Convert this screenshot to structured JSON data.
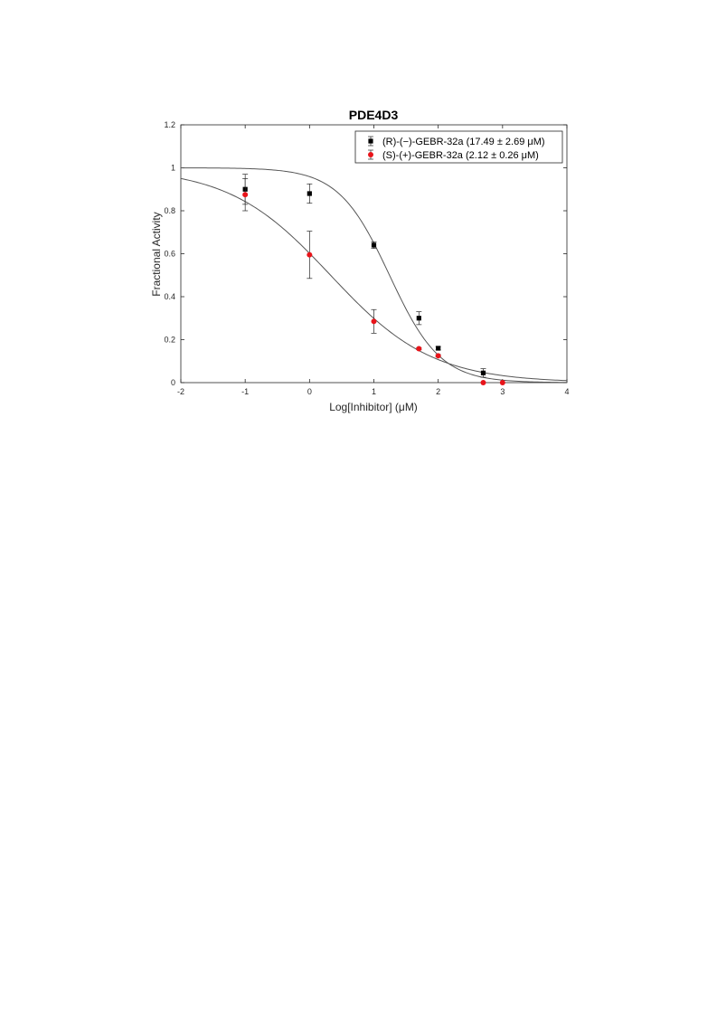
{
  "chart_data": {
    "type": "scatter",
    "title": "PDE4D3",
    "xlabel": "Log[Inhibitor] (μM)",
    "ylabel": "Fractional Activity",
    "xlim": [
      -2,
      4
    ],
    "ylim": [
      0,
      1.2
    ],
    "xticks": [
      "-2",
      "-1",
      "0",
      "1",
      "2",
      "3",
      "4"
    ],
    "yticks": [
      "0",
      "0.2",
      "0.4",
      "0.6",
      "0.8",
      "1",
      "1.2"
    ],
    "grid": false,
    "legend_position": "top-right",
    "series": [
      {
        "name": "(R)-(−)-GEBR-32a (17.49 ± 2.69 μM)",
        "color": "#000000",
        "marker": "square",
        "points": [
          {
            "x": -1,
            "y": 0.9,
            "err": 0.07
          },
          {
            "x": 0,
            "y": 0.88,
            "err": 0.045
          },
          {
            "x": 1,
            "y": 0.64,
            "err": 0.015
          },
          {
            "x": 1.7,
            "y": 0.3,
            "err": 0.03
          },
          {
            "x": 2,
            "y": 0.16,
            "err": 0.008
          },
          {
            "x": 2.7,
            "y": 0.045,
            "err": 0.02
          }
        ],
        "fit": {
          "top": 1.0,
          "bottom": 0.0,
          "log_ic50": 1.2428,
          "hill": 1.1
        }
      },
      {
        "name": "(S)-(+)-GEBR-32a (2.12 ± 0.26 μM)",
        "color": "#e8141a",
        "marker": "circle",
        "points": [
          {
            "x": -1,
            "y": 0.875,
            "err": 0.075
          },
          {
            "x": 0,
            "y": 0.595,
            "err": 0.11
          },
          {
            "x": 1,
            "y": 0.285,
            "err": 0.055
          },
          {
            "x": 1.7,
            "y": 0.158,
            "err": 0.005
          },
          {
            "x": 2,
            "y": 0.125,
            "err": 0.005
          },
          {
            "x": 2.7,
            "y": 0.0,
            "err": 0.0
          },
          {
            "x": 3,
            "y": 0.0,
            "err": 0.0
          }
        ],
        "fit": {
          "top": 1.0,
          "bottom": 0.0,
          "log_ic50": 0.3263,
          "hill": 0.55
        }
      }
    ]
  }
}
